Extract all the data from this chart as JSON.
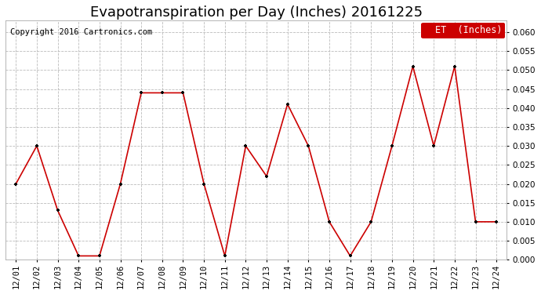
{
  "title": "Evapotranspiration per Day (Inches) 20161225",
  "copyright": "Copyright 2016 Cartronics.com",
  "legend_label": "ET  (Inches)",
  "legend_bg": "#cc0000",
  "legend_fg": "#ffffff",
  "line_color": "#cc0000",
  "marker_color": "#000000",
  "dates": [
    "12/01",
    "12/02",
    "12/03",
    "12/04",
    "12/05",
    "12/06",
    "12/07",
    "12/08",
    "12/09",
    "12/10",
    "12/11",
    "12/12",
    "12/13",
    "12/14",
    "12/15",
    "12/16",
    "12/17",
    "12/18",
    "12/19",
    "12/20",
    "12/21",
    "12/22",
    "12/23",
    "12/24"
  ],
  "values": [
    0.02,
    0.03,
    0.013,
    0.001,
    0.001,
    0.02,
    0.044,
    0.044,
    0.044,
    0.02,
    0.001,
    0.03,
    0.022,
    0.041,
    0.03,
    0.01,
    0.001,
    0.01,
    0.03,
    0.051,
    0.03,
    0.051,
    0.01,
    0.01
  ],
  "ylim": [
    0.0,
    0.063
  ],
  "yticks": [
    0.0,
    0.005,
    0.01,
    0.015,
    0.02,
    0.025,
    0.03,
    0.035,
    0.04,
    0.045,
    0.05,
    0.055,
    0.06
  ],
  "bg_color": "#ffffff",
  "grid_color": "#bbbbbb",
  "title_fontsize": 13,
  "copyright_fontsize": 7.5,
  "tick_fontsize": 7.5,
  "legend_fontsize": 8.5
}
